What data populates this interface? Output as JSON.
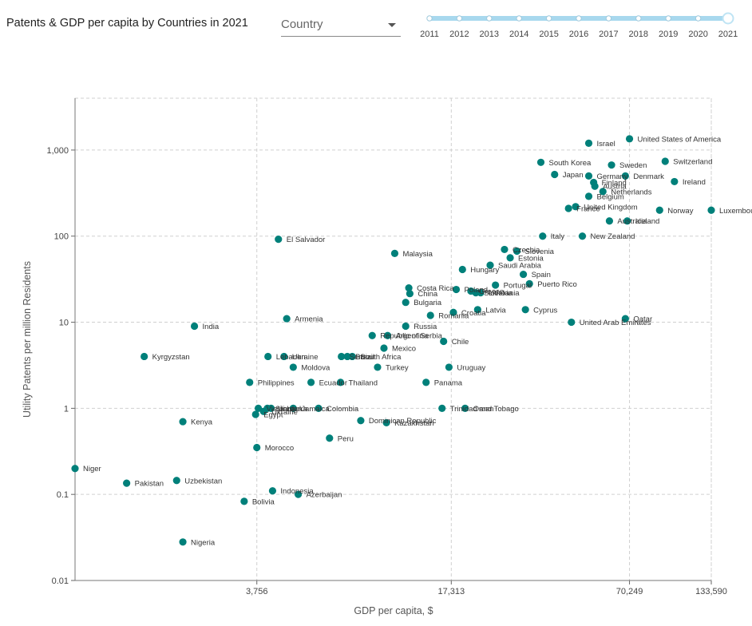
{
  "header": {
    "title": "Patents & GDP per capita by Countries in 2021",
    "country_select": {
      "value": "Country"
    }
  },
  "timeline": {
    "years": [
      "2011",
      "2012",
      "2013",
      "2014",
      "2015",
      "2016",
      "2017",
      "2018",
      "2019",
      "2020",
      "2021"
    ],
    "selected": "2021"
  },
  "colors": {
    "point": "#00807a",
    "slider": "#a8d8ee",
    "slider_handle": "#bfe4f4",
    "grid": "#d0d0d0"
  },
  "chart_data": {
    "type": "scatter",
    "title": "",
    "xlabel": "GDP per capita, $",
    "ylabel": "Utility Patents per million Residents",
    "x_scale": "log",
    "y_scale": "log",
    "xlim": [
      900,
      133590
    ],
    "ylim": [
      0.01,
      4000
    ],
    "grid": true,
    "x_ticks": [
      3756,
      17313,
      70249,
      133590
    ],
    "x_tick_labels": [
      "3,756",
      "17,313",
      "70,249",
      "133,590"
    ],
    "y_ticks": [
      0.01,
      0.1,
      1,
      10,
      100,
      1000
    ],
    "y_tick_labels": [
      "0.01",
      "0.1",
      "1",
      "10",
      "100",
      "1,000"
    ],
    "points": [
      {
        "label": "United States of America",
        "x": 70249,
        "y": 1350
      },
      {
        "label": "Israel",
        "x": 51000,
        "y": 1200
      },
      {
        "label": "South Korea",
        "x": 35000,
        "y": 720
      },
      {
        "label": "Switzerland",
        "x": 93000,
        "y": 740
      },
      {
        "label": "Sweden",
        "x": 61000,
        "y": 670
      },
      {
        "label": "Japan",
        "x": 39000,
        "y": 520
      },
      {
        "label": "Germany",
        "x": 51000,
        "y": 500
      },
      {
        "label": "Denmark",
        "x": 68000,
        "y": 500
      },
      {
        "label": "Finland",
        "x": 53000,
        "y": 420
      },
      {
        "label": "Austria",
        "x": 53500,
        "y": 380
      },
      {
        "label": "Ireland",
        "x": 100000,
        "y": 430
      },
      {
        "label": "Netherlands",
        "x": 57000,
        "y": 330
      },
      {
        "label": "Belgium",
        "x": 51000,
        "y": 290
      },
      {
        "label": "United Kingdom",
        "x": 46000,
        "y": 220
      },
      {
        "label": "France",
        "x": 43500,
        "y": 210
      },
      {
        "label": "Norway",
        "x": 89000,
        "y": 200
      },
      {
        "label": "Luxembourg",
        "x": 133590,
        "y": 200
      },
      {
        "label": "Australia",
        "x": 60000,
        "y": 150
      },
      {
        "label": "Iceland",
        "x": 69000,
        "y": 150
      },
      {
        "label": "Italy",
        "x": 35500,
        "y": 100
      },
      {
        "label": "New Zealand",
        "x": 48500,
        "y": 100
      },
      {
        "label": "El Salvador",
        "x": 4450,
        "y": 92
      },
      {
        "label": "Malaysia",
        "x": 11100,
        "y": 63
      },
      {
        "label": "Czechia",
        "x": 26300,
        "y": 70
      },
      {
        "label": "Slovenia",
        "x": 29000,
        "y": 67
      },
      {
        "label": "Estonia",
        "x": 27500,
        "y": 56
      },
      {
        "label": "Saudi Arabia",
        "x": 23500,
        "y": 46
      },
      {
        "label": "Hungary",
        "x": 18900,
        "y": 41
      },
      {
        "label": "Spain",
        "x": 30500,
        "y": 36
      },
      {
        "label": "Puerto Rico",
        "x": 32000,
        "y": 28
      },
      {
        "label": "Portugal",
        "x": 24500,
        "y": 27
      },
      {
        "label": "Costa Rica",
        "x": 12400,
        "y": 25
      },
      {
        "label": "Poland",
        "x": 18000,
        "y": 24
      },
      {
        "label": "Greece",
        "x": 20200,
        "y": 23
      },
      {
        "label": "Slovakia",
        "x": 21000,
        "y": 22
      },
      {
        "label": "Lithuania",
        "x": 21800,
        "y": 22
      },
      {
        "label": "China",
        "x": 12500,
        "y": 21.5
      },
      {
        "label": "Bulgaria",
        "x": 12100,
        "y": 17
      },
      {
        "label": "Latvia",
        "x": 21300,
        "y": 14
      },
      {
        "label": "Cyprus",
        "x": 31000,
        "y": 14
      },
      {
        "label": "Croatia",
        "x": 17600,
        "y": 13
      },
      {
        "label": "Romania",
        "x": 14700,
        "y": 12
      },
      {
        "label": "Qatar",
        "x": 68000,
        "y": 11
      },
      {
        "label": "United Arab Emirates",
        "x": 44500,
        "y": 10
      },
      {
        "label": "India",
        "x": 2300,
        "y": 9
      },
      {
        "label": "Armenia",
        "x": 4750,
        "y": 11
      },
      {
        "label": "Russia",
        "x": 12100,
        "y": 9
      },
      {
        "label": "Republic of Serbia",
        "x": 9300,
        "y": 7
      },
      {
        "label": "Argentina",
        "x": 10500,
        "y": 7
      },
      {
        "label": "Chile",
        "x": 16300,
        "y": 6
      },
      {
        "label": "Mexico",
        "x": 10200,
        "y": 5
      },
      {
        "label": "Kyrgyzstan",
        "x": 1550,
        "y": 4
      },
      {
        "label": "Lebanon",
        "x": 4100,
        "y": 4
      },
      {
        "label": "Ukraine",
        "x": 4650,
        "y": 4
      },
      {
        "label": "Serbia",
        "x": 7300,
        "y": 4
      },
      {
        "label": "Brazil",
        "x": 7650,
        "y": 4
      },
      {
        "label": "South Africa",
        "x": 7950,
        "y": 4
      },
      {
        "label": "Moldova",
        "x": 5000,
        "y": 3
      },
      {
        "label": "Turkey",
        "x": 9700,
        "y": 3
      },
      {
        "label": "Uruguay",
        "x": 17000,
        "y": 3
      },
      {
        "label": "Philippines",
        "x": 3550,
        "y": 2
      },
      {
        "label": "Ecuador",
        "x": 5750,
        "y": 2
      },
      {
        "label": "Thailand",
        "x": 7250,
        "y": 2
      },
      {
        "label": "Panama",
        "x": 14200,
        "y": 2
      },
      {
        "label": "Vietnam",
        "x": 3800,
        "y": 1
      },
      {
        "label": "Sri Lanka",
        "x": 4080,
        "y": 1
      },
      {
        "label": "Jordan",
        "x": 4200,
        "y": 1
      },
      {
        "label": "Jamaica",
        "x": 5000,
        "y": 1
      },
      {
        "label": "Colombia",
        "x": 6100,
        "y": 1
      },
      {
        "label": "Trinidad and Tobago",
        "x": 16100,
        "y": 1
      },
      {
        "label": "Oman",
        "x": 19300,
        "y": 1
      },
      {
        "label": "Egypt",
        "x": 3720,
        "y": 0.85
      },
      {
        "label": "Ukraine",
        "x": 3960,
        "y": 0.92
      },
      {
        "label": "Kenya",
        "x": 2100,
        "y": 0.7
      },
      {
        "label": "Dominican Republic",
        "x": 8500,
        "y": 0.72
      },
      {
        "label": "Kazakhstan",
        "x": 10400,
        "y": 0.68
      },
      {
        "label": "Peru",
        "x": 6650,
        "y": 0.45
      },
      {
        "label": "Morocco",
        "x": 3756,
        "y": 0.35
      },
      {
        "label": "Niger",
        "x": 900,
        "y": 0.2
      },
      {
        "label": "Pakistan",
        "x": 1350,
        "y": 0.135
      },
      {
        "label": "Uzbekistan",
        "x": 2000,
        "y": 0.145
      },
      {
        "label": "Indonesia",
        "x": 4250,
        "y": 0.11
      },
      {
        "label": "Azerbaijan",
        "x": 5200,
        "y": 0.1
      },
      {
        "label": "Bolivia",
        "x": 3400,
        "y": 0.083
      },
      {
        "label": "Nigeria",
        "x": 2100,
        "y": 0.028
      }
    ]
  }
}
